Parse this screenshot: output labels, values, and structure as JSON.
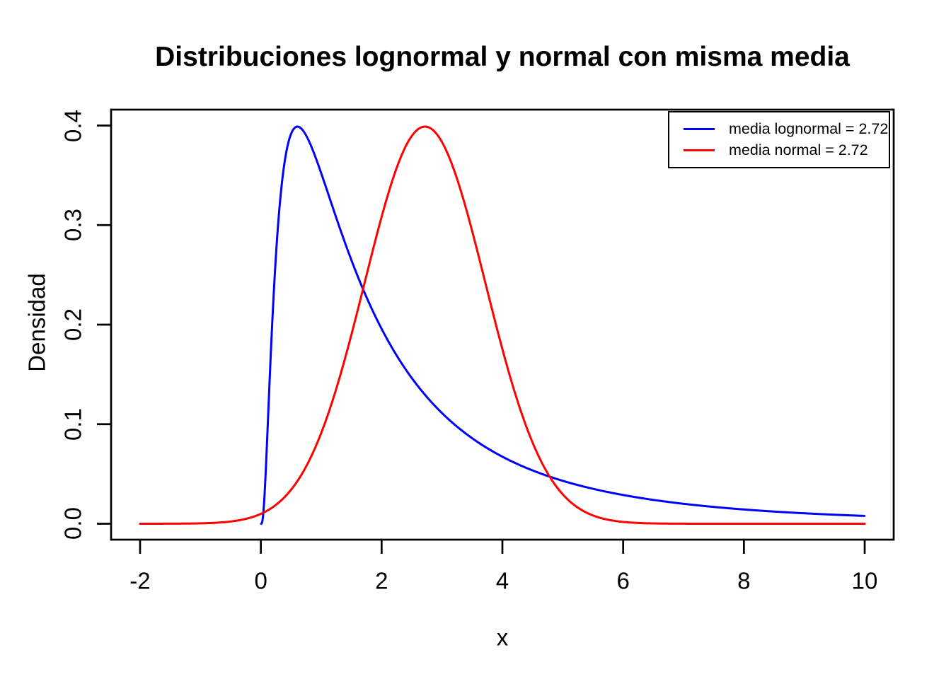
{
  "chart_data": {
    "type": "line",
    "title": "Distribuciones lognormal y normal con misma media",
    "xlabel": "x",
    "ylabel": "Densidad",
    "axis_ranges": {
      "xlim": [
        -2.48,
        10.48
      ],
      "ylim": [
        -0.016,
        0.416
      ]
    },
    "data_xlim": [
      -2,
      10
    ],
    "data_ylim": [
      0,
      0.4
    ],
    "xticks": [
      "-2",
      "0",
      "2",
      "4",
      "6",
      "8",
      "10"
    ],
    "yticks": [
      "0.0",
      "0.1",
      "0.2",
      "0.3",
      "0.4"
    ],
    "grid": false,
    "background": "#ffffff",
    "axis_color": "#000000",
    "series": [
      {
        "name": "lognormal",
        "label": "media lognormal = 2.72",
        "color": "#0000FF",
        "distribution": "lognormal",
        "params": {
          "meanlog": 0.5,
          "sdlog": 1
        },
        "mean": 2.72,
        "draw_range": [
          0.005,
          10
        ],
        "sample_step": 0.01,
        "peak": {
          "x": 0.607,
          "y": 0.399
        },
        "reference_points": {
          "x": [
            0.1,
            0.25,
            0.5,
            0.607,
            1,
            1.5,
            2,
            3,
            4,
            5,
            6,
            7,
            8,
            9,
            10
          ],
          "y": [
            0.079,
            0.269,
            0.392,
            0.399,
            0.352,
            0.265,
            0.196,
            0.111,
            0.067,
            0.043,
            0.029,
            0.02,
            0.014,
            0.011,
            0.008
          ]
        }
      },
      {
        "name": "normal",
        "label": "media normal = 2.72",
        "color": "#FF0000",
        "distribution": "normal",
        "params": {
          "mean": 2.718,
          "sd": 1
        },
        "mean": 2.72,
        "draw_range": [
          -2,
          10
        ],
        "sample_step": 0.01,
        "peak": {
          "x": 2.718,
          "y": 0.399
        },
        "reference_points": {
          "x": [
            -2,
            0,
            1,
            2,
            2.72,
            3,
            4,
            5,
            6,
            10
          ],
          "y": [
            0.0,
            0.01,
            0.091,
            0.308,
            0.399,
            0.383,
            0.175,
            0.029,
            0.002,
            0.0
          ]
        }
      }
    ],
    "legend": {
      "position": "topright"
    }
  }
}
